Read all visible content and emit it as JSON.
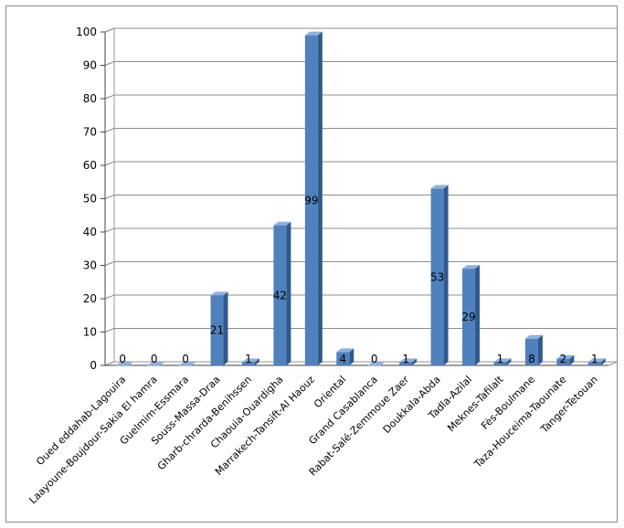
{
  "chart_data": {
    "type": "bar",
    "style": "3d-column",
    "bar_color": "#4f81bd",
    "categories": [
      "Oued eddahab-Lagouira",
      "Laayoune-Boujdour-Sakia El hamra",
      "Guelmim-Essmara",
      "Souss-Massa-Draa",
      "Gharb-chrarda-Benihssen",
      "Chaouia-Ouardigha",
      "Marrakech-Tansift-Al Haouz",
      "Oriental",
      "Grand Casablanca",
      "Rabat-Salé-Zemmoue Zaer",
      "Doukkala-Abda",
      "Tadla-Azilal",
      "Meknes-Tafilalt",
      "Fès-Boulmane",
      "Taza-Houceima-Taounate",
      "Tanger-Tetouan"
    ],
    "values": [
      0,
      0,
      0,
      21,
      1,
      42,
      99,
      4,
      0,
      1,
      53,
      29,
      1,
      8,
      2,
      1
    ],
    "data_labels": [
      "0",
      "0",
      "0",
      "21",
      "1",
      "42",
      "99",
      "4",
      "0",
      "1",
      "53",
      "29",
      "1",
      "8",
      "2",
      "1"
    ],
    "yticks": [
      "0",
      "10",
      "20",
      "30",
      "40",
      "50",
      "60",
      "70",
      "80",
      "90",
      "100"
    ],
    "ylim": [
      0,
      100
    ],
    "grid": true,
    "legend": "none",
    "title": "",
    "xlabel": "",
    "ylabel": ""
  }
}
